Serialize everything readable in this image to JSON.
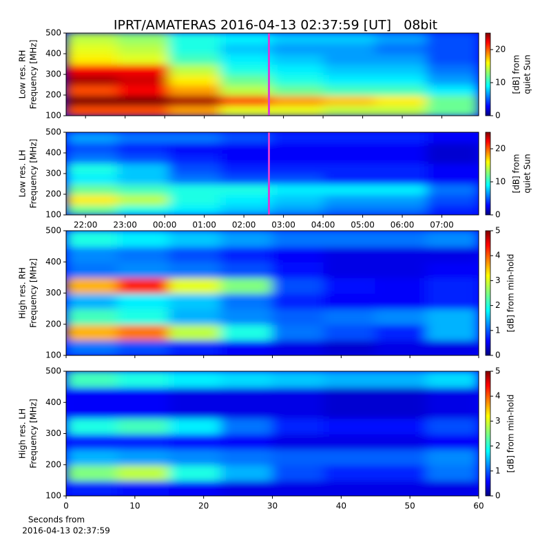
{
  "chart_data": [
    {
      "type": "heatmap",
      "title": "IPRT/AMATERAS 2016-04-13 02:37:59 [UT]   08bit",
      "ylabel": [
        "Low res. RH",
        "Frequency [MHz]"
      ],
      "ylim": [
        100,
        500
      ],
      "yticks": [
        100,
        200,
        300,
        400,
        500
      ],
      "xlim": [
        21.51,
        31.93
      ],
      "xticks": [
        22,
        23,
        24,
        25,
        26,
        27,
        28,
        29,
        30,
        31
      ],
      "xtick_labels": false,
      "marker": 26.633,
      "marker_color": "#d63cd6",
      "clim": [
        0,
        25
      ],
      "cticks": [
        0,
        10,
        20
      ],
      "clabel": [
        "[dB] from",
        "quiet Sun"
      ],
      "values": [
        [
          20,
          20,
          18,
          15,
          15,
          14,
          14,
          12
        ],
        [
          25,
          25,
          24,
          20,
          18,
          17,
          16,
          12
        ],
        [
          20,
          22,
          18,
          14,
          12,
          11,
          11,
          9
        ],
        [
          24,
          23,
          16,
          12,
          10,
          9,
          9,
          7
        ],
        [
          22,
          22,
          14,
          10,
          9,
          8,
          8,
          6
        ],
        [
          16,
          15,
          11,
          9,
          8,
          7,
          7,
          5
        ],
        [
          15,
          14,
          10,
          8,
          7,
          7,
          6,
          5
        ],
        [
          14,
          13,
          10,
          9,
          8,
          8,
          7,
          5
        ]
      ]
    },
    {
      "type": "heatmap",
      "ylabel": [
        "Low res. LH",
        "Frequency [MHz]"
      ],
      "ylim": [
        100,
        500
      ],
      "yticks": [
        100,
        200,
        300,
        400,
        500
      ],
      "xlim": [
        21.51,
        31.93
      ],
      "xticks": [
        {
          "value": 22,
          "label": "22:00"
        },
        {
          "value": 23,
          "label": "23:00"
        },
        {
          "value": 24,
          "label": "00:00"
        },
        {
          "value": 25,
          "label": "01:00"
        },
        {
          "value": 26,
          "label": "02:00"
        },
        {
          "value": 27,
          "label": "03:00"
        },
        {
          "value": 28,
          "label": "04:00"
        },
        {
          "value": 29,
          "label": "05:00"
        },
        {
          "value": 30,
          "label": "06:00"
        },
        {
          "value": 31,
          "label": "07:00"
        }
      ],
      "xtick_labels": true,
      "marker": 26.633,
      "marker_color": "#d63cd6",
      "clim": [
        0,
        25
      ],
      "cticks": [
        0,
        10,
        20
      ],
      "clabel": [
        "[dB] from",
        "quiet Sun"
      ],
      "values": [
        [
          12,
          10,
          9,
          8,
          7,
          6,
          6,
          4
        ],
        [
          16,
          14,
          10,
          9,
          8,
          7,
          7,
          5
        ],
        [
          12,
          11,
          10,
          10,
          9,
          9,
          9,
          6
        ],
        [
          9,
          8,
          6,
          5,
          5,
          4,
          4,
          3
        ],
        [
          10,
          8,
          5,
          4,
          4,
          4,
          4,
          3
        ],
        [
          6,
          5,
          4,
          3,
          3,
          3,
          3,
          2
        ],
        [
          5,
          4,
          3,
          3,
          3,
          3,
          3,
          2
        ],
        [
          7,
          6,
          6,
          5,
          4,
          4,
          4,
          3
        ]
      ]
    },
    {
      "type": "heatmap",
      "ylabel": [
        "High res. RH",
        "Frequency [MHz]"
      ],
      "ylim": [
        100,
        500
      ],
      "yticks": [
        100,
        200,
        300,
        400,
        500
      ],
      "xlim": [
        0,
        60
      ],
      "xticks": [
        0,
        10,
        20,
        30,
        40,
        50,
        60
      ],
      "xtick_labels": false,
      "clim": [
        0,
        5
      ],
      "cticks": [
        0,
        1,
        2,
        3,
        4,
        5
      ],
      "clabel": [
        "[dB] from min-hold"
      ],
      "values": [
        [
          1.2,
          1.0,
          0.8,
          0.6,
          0.5,
          0.4,
          0.5,
          0.5
        ],
        [
          3.5,
          3.8,
          2.8,
          2.0,
          1.2,
          1.0,
          0.8,
          1.5
        ],
        [
          2.2,
          2.0,
          1.5,
          1.3,
          1.1,
          1.2,
          1.3,
          1.5
        ],
        [
          1.5,
          1.8,
          1.6,
          1.2,
          0.8,
          0.6,
          0.6,
          0.8
        ],
        [
          3.5,
          4.2,
          3.0,
          2.5,
          1.0,
          0.7,
          0.6,
          0.8
        ],
        [
          1.2,
          1.3,
          1.2,
          1.0,
          0.7,
          0.5,
          0.5,
          0.6
        ],
        [
          1.3,
          1.2,
          1.0,
          0.8,
          0.6,
          0.5,
          0.5,
          0.5
        ],
        [
          2.0,
          1.8,
          1.6,
          1.4,
          1.2,
          1.2,
          1.2,
          1.3
        ]
      ]
    },
    {
      "type": "heatmap",
      "ylabel": [
        "High res. LH",
        "Frequency [MHz]"
      ],
      "ylim": [
        100,
        500
      ],
      "yticks": [
        100,
        200,
        300,
        400,
        500
      ],
      "xlim": [
        0,
        60
      ],
      "xticks": [
        0,
        10,
        20,
        30,
        40,
        50,
        60
      ],
      "xtick_labels": true,
      "xlabel": [
        "Seconds from",
        "2016-04-13 02:37:59"
      ],
      "clim": [
        0,
        5
      ],
      "cticks": [
        0,
        1,
        2,
        3,
        4,
        5
      ],
      "clabel": [
        "[dB] from min-hold"
      ],
      "values": [
        [
          0.8,
          0.7,
          0.6,
          0.5,
          0.5,
          0.5,
          0.5,
          0.5
        ],
        [
          2.5,
          2.8,
          2.0,
          1.5,
          1.0,
          0.8,
          0.8,
          1.2
        ],
        [
          1.5,
          1.4,
          1.3,
          1.2,
          1.1,
          1.1,
          1.1,
          1.3
        ],
        [
          0.8,
          0.8,
          0.7,
          0.6,
          0.5,
          0.5,
          0.5,
          0.6
        ],
        [
          2.0,
          2.2,
          1.8,
          1.2,
          0.8,
          0.7,
          0.7,
          1.0
        ],
        [
          0.6,
          0.6,
          0.5,
          0.5,
          0.5,
          0.4,
          0.4,
          0.5
        ],
        [
          0.6,
          0.6,
          0.5,
          0.5,
          0.5,
          0.4,
          0.4,
          0.5
        ],
        [
          2.2,
          2.0,
          1.8,
          1.7,
          1.6,
          1.5,
          1.5,
          1.7
        ]
      ]
    }
  ]
}
